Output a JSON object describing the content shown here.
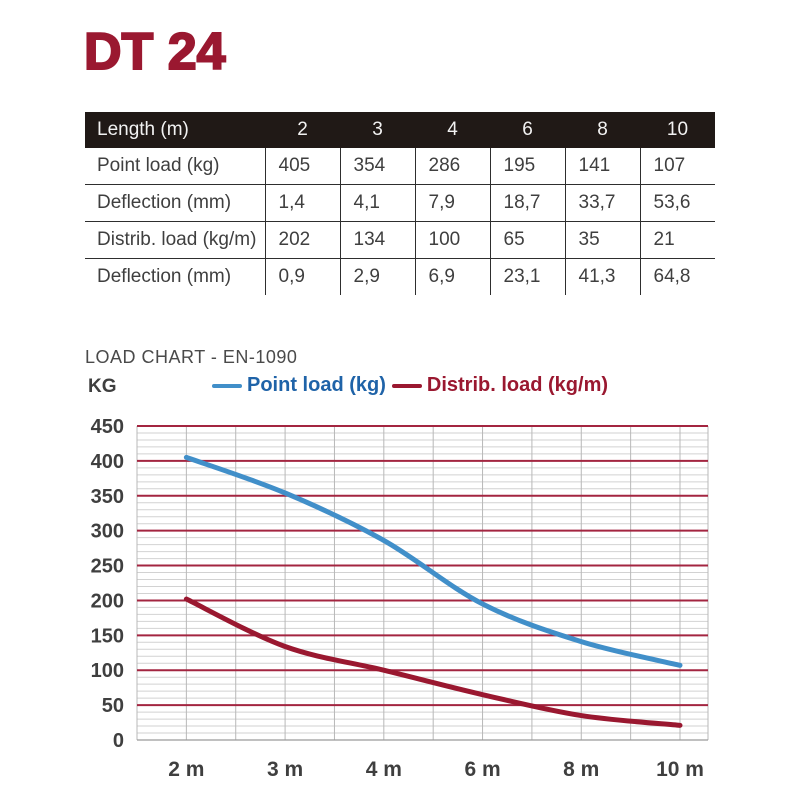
{
  "title": "DT 24",
  "table": {
    "header_label": "Length (m)",
    "columns": [
      "2",
      "3",
      "4",
      "6",
      "8",
      "10"
    ],
    "rows": [
      {
        "label": "Point load (kg)",
        "values": [
          "405",
          "354",
          "286",
          "195",
          "141",
          "107"
        ]
      },
      {
        "label": "Deflection (mm)",
        "values": [
          "1,4",
          "4,1",
          "7,9",
          "18,7",
          "33,7",
          "53,6"
        ]
      },
      {
        "label": "Distrib. load (kg/m)",
        "values": [
          "202",
          "134",
          "100",
          "65",
          "35",
          "21"
        ]
      },
      {
        "label": "Deflection (mm)",
        "values": [
          "0,9",
          "2,9",
          "6,9",
          "23,1",
          "41,3",
          "64,8"
        ]
      }
    ]
  },
  "chart_section": {
    "title": "LOAD CHART - EN-1090",
    "y_unit": "KG"
  },
  "chart_data": {
    "type": "line",
    "categories": [
      "2 m",
      "3 m",
      "4 m",
      "6 m",
      "8 m",
      "10 m"
    ],
    "x_values_m": [
      2,
      3,
      4,
      6,
      8,
      10
    ],
    "series": [
      {
        "name": "Point load (kg)",
        "values": [
          405,
          354,
          286,
          195,
          141,
          107
        ],
        "color": "#418FC9",
        "label_color": "#1F63A8"
      },
      {
        "name": "Distrib. load (kg/m)",
        "values": [
          202,
          134,
          100,
          65,
          35,
          21
        ],
        "color": "#9A1830",
        "label_color": "#9A1830"
      }
    ],
    "ylim": [
      0,
      450
    ],
    "y_ticks": [
      0,
      50,
      100,
      150,
      200,
      250,
      300,
      350,
      400,
      450
    ],
    "y_minor_step": 10,
    "grid": {
      "major_color": "#A32540",
      "minor_color": "#D2D2D2",
      "vertical_color": "#B8B8B8",
      "zero_line_color": "#9A9A9A"
    },
    "legend_position": "top",
    "title": "LOAD CHART - EN-1090",
    "xlabel": "",
    "ylabel": "KG"
  },
  "colors": {
    "accent": "#9A1830",
    "table_header_bg": "#201916",
    "table_header_text": "#F2F2F2",
    "body_text": "#3F3F3F"
  }
}
